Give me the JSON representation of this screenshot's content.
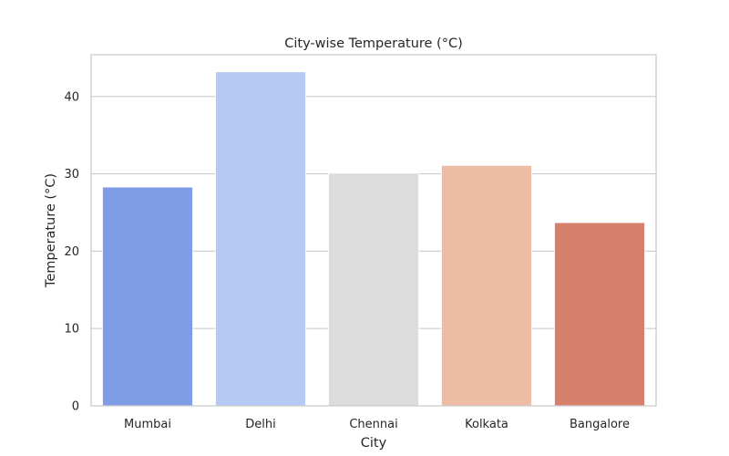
{
  "chart_data": {
    "type": "bar",
    "title": "City-wise Temperature (°C)",
    "xlabel": "City",
    "ylabel": "Temperature (°C)",
    "categories": [
      "Mumbai",
      "Delhi",
      "Chennai",
      "Kolkata",
      "Bangalore"
    ],
    "values": [
      28.3,
      43.2,
      30.1,
      31.1,
      23.7
    ],
    "colors": [
      "#7f9de6",
      "#b6c9f4",
      "#dcdcdc",
      "#ecbca5",
      "#d6806b"
    ],
    "ylim": [
      0,
      45.4
    ],
    "yticks": [
      0,
      10,
      20,
      30,
      40
    ],
    "grid": true,
    "legend": false
  }
}
